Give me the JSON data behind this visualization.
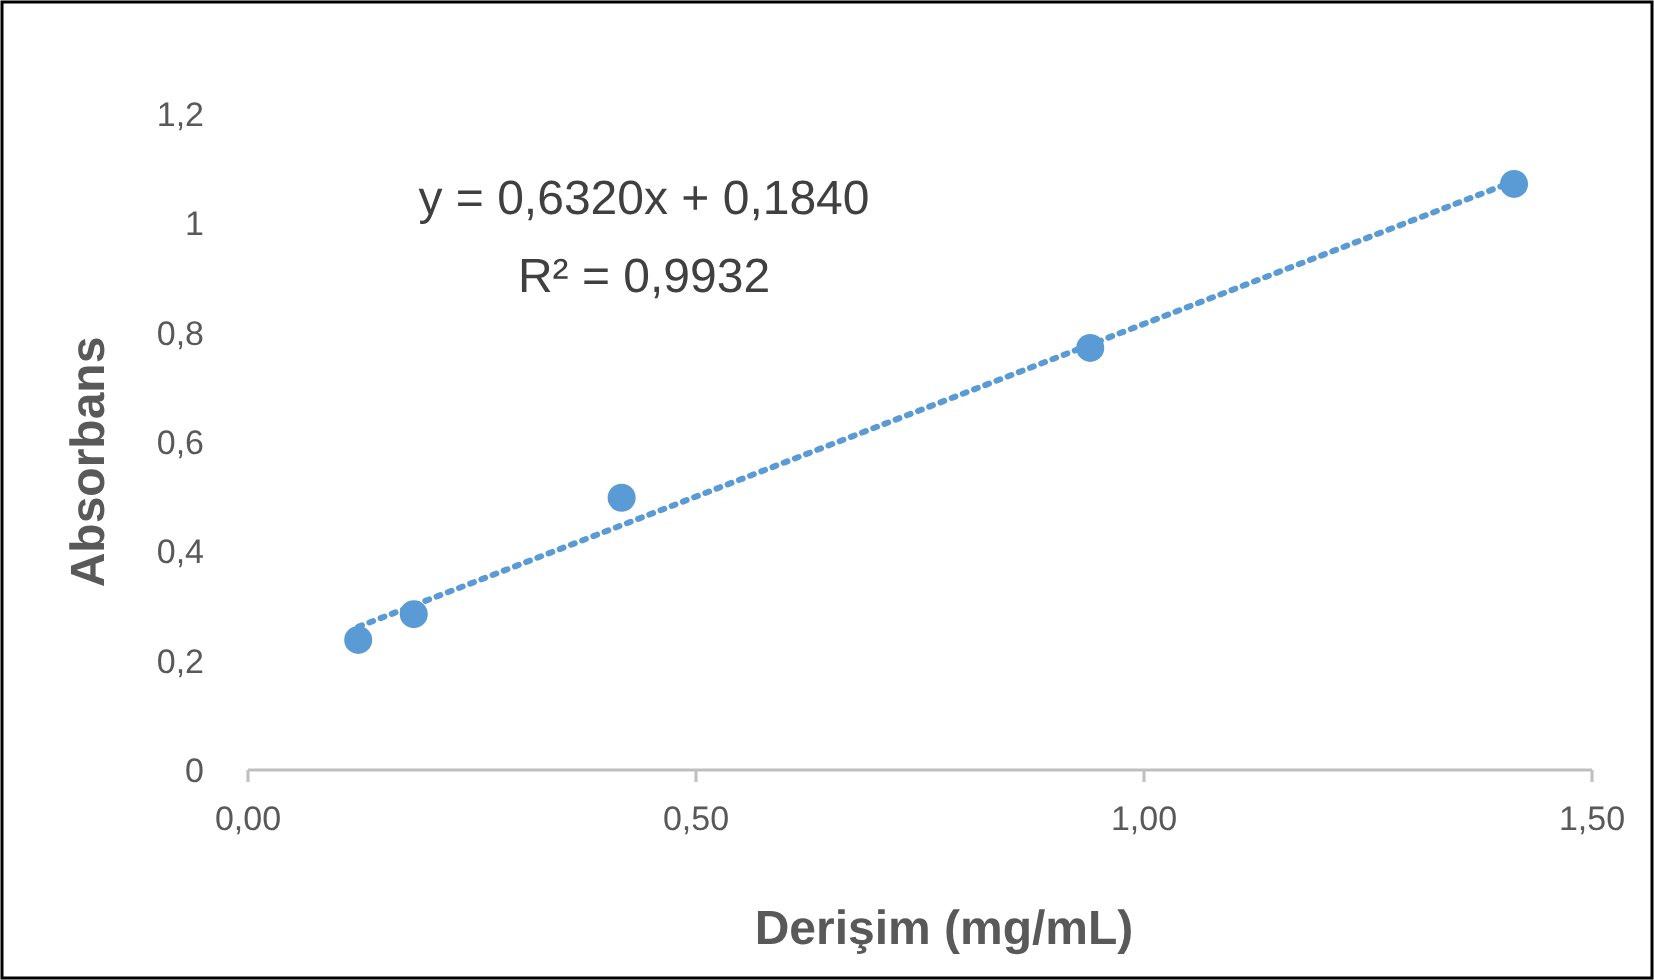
{
  "chart_data": {
    "type": "scatter",
    "xlabel": "Derişim (mg/mL)",
    "ylabel": "Absorbans",
    "annotations": [
      "y = 0,6320x + 0,1840",
      "R² = 0,9932"
    ],
    "xlim": [
      0,
      1.5
    ],
    "xticks": [
      {
        "value": 0,
        "label": "0,00"
      },
      {
        "value": 0.5,
        "label": "0,50"
      },
      {
        "value": 1,
        "label": "1,00"
      },
      {
        "value": 1.5,
        "label": "1,50"
      }
    ],
    "ylim": [
      0,
      1.2
    ],
    "yticks": [
      0,
      {
        "value": 0.2,
        "label": "0,2"
      },
      {
        "value": 0.4,
        "label": "0,4"
      },
      {
        "value": 0.6,
        "label": "0,6"
      },
      {
        "value": 0.8,
        "label": "0,8"
      },
      1,
      {
        "value": 1.2,
        "label": "1,2"
      }
    ],
    "grid": false,
    "series": [
      {
        "color": "#5b9bd5",
        "marker": "circle",
        "x": [
          0.123,
          0.185,
          0.417,
          0.94,
          1.413
        ],
        "values": [
          0.238,
          0.285,
          0.498,
          0.772,
          1.072
        ]
      },
      {
        "type": "line",
        "color": "#5b9bd5",
        "marker": "none",
        "line_style": "dotted",
        "x": [
          0.123,
          1.413
        ],
        "values": [
          0.262,
          1.077
        ]
      }
    ]
  }
}
